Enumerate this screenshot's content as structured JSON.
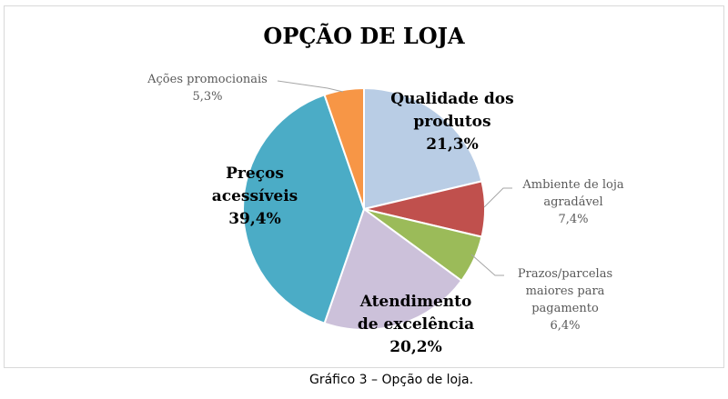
{
  "chart_data": {
    "type": "pie",
    "title": "OPÇÃO DE LOJA",
    "start": "top, clockwise",
    "slices": [
      {
        "label": "Qualidade dos produtos",
        "value": 21.3,
        "display": "21,3%",
        "color": "#B9CDE5",
        "lines": [
          "Qualidade dos",
          "produtos"
        ]
      },
      {
        "label": "Ambiente de loja agradável",
        "value": 7.4,
        "display": "7,4%",
        "color": "#C0504D",
        "lines": [
          "Ambiente de loja",
          "agradável"
        ]
      },
      {
        "label": "Prazos/parcelas maiores para pagamento",
        "value": 6.4,
        "display": "6,4%",
        "color": "#9BBB59",
        "lines": [
          "Prazos/parcelas",
          "maiores para",
          "pagamento"
        ]
      },
      {
        "label": "Atendimento de excelência",
        "value": 20.2,
        "display": "20,2%",
        "color": "#CCC1DA",
        "lines": [
          "Atendimento",
          "de excelência"
        ]
      },
      {
        "label": "Preços acessíveis",
        "value": 39.4,
        "display": "39,4%",
        "color": "#4BACC6",
        "lines": [
          "Preços",
          "acessíveis"
        ]
      },
      {
        "label": "Ações promocionais",
        "value": 5.3,
        "display": "5,3%",
        "color": "#F79646",
        "lines": [
          "Ações promocionais"
        ]
      }
    ]
  },
  "caption": "Gráfico 3 – Opção de loja."
}
